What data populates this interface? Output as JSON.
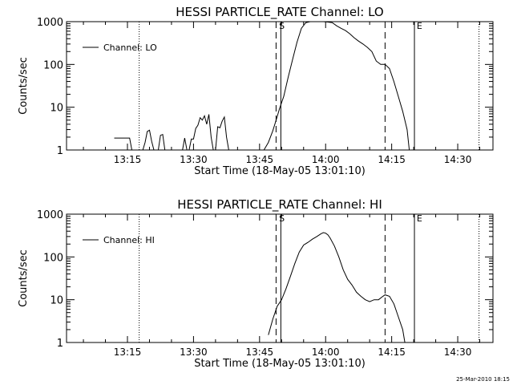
{
  "footer_timestamp": "25-Mar-2010 18:15",
  "chart_data": [
    {
      "type": "line",
      "title": "HESSI PARTICLE_RATE Channel: LO",
      "xlabel": "Start Time (18-May-05 13:01:10)",
      "ylabel": "Counts/sec",
      "yscale": "log",
      "ylim": [
        1,
        1000
      ],
      "xlim": [
        "13:01:10",
        "14:38:00"
      ],
      "xticks": [
        "13:15",
        "13:30",
        "13:45",
        "14:00",
        "14:15",
        "14:30"
      ],
      "yticks": [
        "1",
        "10",
        "100",
        "1000"
      ],
      "legend": {
        "label": "Channel: LO",
        "position": "top-left"
      },
      "markers": [
        {
          "label": "S",
          "x": "13:49:15"
        },
        {
          "label": "E",
          "x": "14:20:30"
        }
      ],
      "dashed_lines": [
        "13:48:45",
        "14:13:30"
      ],
      "dotted_lines": [
        "13:17:40",
        "14:34:50"
      ],
      "solid_lines": [
        "13:49:50",
        "14:20:10"
      ],
      "series": [
        {
          "x": [
            "13:12:00",
            "13:12:30",
            "13:15:30",
            "13:16:00",
            "13:16:30",
            "13:17:00",
            "13:17:30",
            "13:18:00",
            "13:18:30",
            "13:19:00",
            "13:19:30",
            "13:20:00",
            "13:20:30",
            "13:21:00",
            "13:22:00",
            "13:22:30",
            "13:23:00",
            "13:23:30",
            "13:24:00",
            "13:24:30",
            "13:25:00",
            "13:25:30",
            "13:26:00",
            "13:26:30",
            "13:27:00",
            "13:27:30",
            "13:28:00",
            "13:28:30",
            "13:29:00",
            "13:29:30",
            "13:30:00",
            "13:30:30",
            "13:31:00",
            "13:31:30",
            "13:32:00",
            "13:32:30",
            "13:33:00",
            "13:33:30",
            "13:34:00",
            "13:34:30",
            "13:35:00",
            "13:35:30",
            "13:36:00",
            "13:36:30",
            "13:37:00",
            "13:37:30",
            "13:38:00"
          ],
          "values": [
            1.9,
            1.9,
            1.9,
            1,
            1,
            1,
            1,
            1,
            1,
            1.5,
            2.7,
            2.9,
            1.6,
            1,
            1,
            2.2,
            2.3,
            1,
            1,
            1,
            1,
            1,
            1,
            1,
            1,
            1,
            1.9,
            1,
            1,
            1.8,
            1.8,
            3.2,
            3.8,
            5.7,
            5.0,
            6.3,
            4.0,
            6.8,
            2.0,
            1,
            1,
            3.5,
            3.3,
            4.7,
            5.9,
            2.0,
            1
          ]
        },
        {
          "x": [
            "13:46:00",
            "13:47:00",
            "13:48:00",
            "13:49:00",
            "13:49:30",
            "13:50:30",
            "13:51:30",
            "13:52:30",
            "13:53:30",
            "13:54:30",
            "13:55:30",
            "13:56:30",
            "13:57:30",
            "13:58:30",
            "13:59:30",
            "14:00:30",
            "14:01:30",
            "14:02:30",
            "14:03:30",
            "14:04:30",
            "14:05:30",
            "14:06:30",
            "14:07:30",
            "14:08:30",
            "14:09:30",
            "14:10:30",
            "14:11:30",
            "14:12:30",
            "14:13:30",
            "14:14:30",
            "14:15:30",
            "14:16:30",
            "14:17:30",
            "14:18:30",
            "14:19:00"
          ],
          "values": [
            1,
            1.5,
            2.8,
            6,
            9,
            18,
            50,
            130,
            330,
            700,
            950,
            1000,
            1000,
            1000,
            1000,
            980,
            950,
            800,
            700,
            620,
            520,
            420,
            350,
            300,
            250,
            200,
            120,
            100,
            100,
            80,
            40,
            18,
            8,
            3,
            1
          ]
        }
      ]
    },
    {
      "type": "line",
      "title": "HESSI PARTICLE_RATE Channel: HI",
      "xlabel": "Start Time (18-May-05 13:01:10)",
      "ylabel": "Counts/sec",
      "yscale": "log",
      "ylim": [
        1,
        1000
      ],
      "xlim": [
        "13:01:10",
        "14:38:00"
      ],
      "xticks": [
        "13:15",
        "13:30",
        "13:45",
        "14:00",
        "14:15",
        "14:30"
      ],
      "yticks": [
        "1",
        "10",
        "100",
        "1000"
      ],
      "legend": {
        "label": "Channel: HI",
        "position": "top-left"
      },
      "markers": [
        {
          "label": "S",
          "x": "13:49:15"
        },
        {
          "label": "E",
          "x": "14:20:30"
        }
      ],
      "dashed_lines": [
        "13:48:45",
        "14:13:30"
      ],
      "dotted_lines": [
        "13:17:40",
        "14:34:50"
      ],
      "solid_lines": [
        "13:49:50",
        "14:20:10"
      ],
      "series": [
        {
          "x": [
            "13:47:00",
            "13:48:00",
            "13:49:00",
            "13:50:00",
            "13:51:00",
            "13:52:00",
            "13:53:00",
            "13:54:00",
            "13:55:00",
            "13:56:00",
            "13:57:00",
            "13:58:00",
            "13:59:00",
            "13:59:30",
            "14:00:00",
            "14:00:30",
            "14:01:00",
            "14:02:00",
            "14:03:00",
            "14:04:00",
            "14:05:00",
            "14:06:00",
            "14:07:00",
            "14:08:00",
            "14:09:00",
            "14:10:00",
            "14:11:00",
            "14:12:00",
            "14:13:00",
            "14:13:30",
            "14:14:30",
            "14:15:30",
            "14:16:30",
            "14:17:30",
            "14:18:00"
          ],
          "values": [
            1.5,
            3.5,
            7,
            10,
            18,
            35,
            70,
            130,
            190,
            220,
            260,
            300,
            350,
            370,
            360,
            330,
            280,
            180,
            100,
            50,
            30,
            22,
            15,
            12,
            10,
            9,
            10,
            10,
            12,
            13,
            12,
            8,
            4,
            2,
            1
          ]
        }
      ]
    }
  ]
}
